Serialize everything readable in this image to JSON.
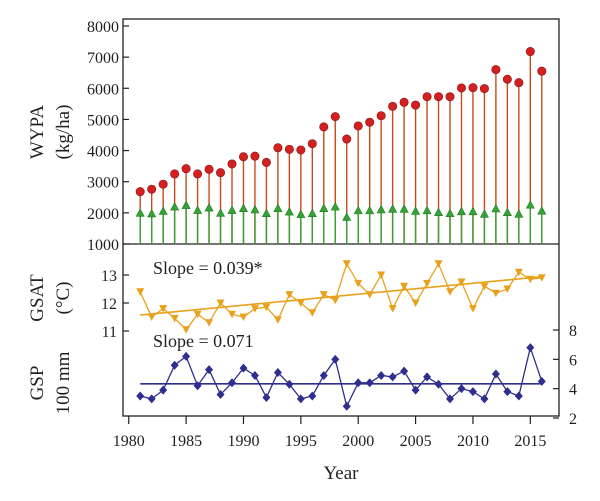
{
  "chart_data": [
    {
      "type": "lollipop",
      "panel": "top",
      "ylabel_line1": "WYPA",
      "ylabel_line2": "(kg/ha)",
      "ylim": [
        1000,
        8000
      ],
      "yticks": [
        1000,
        2000,
        3000,
        4000,
        5000,
        6000,
        7000,
        8000
      ],
      "x": [
        1981,
        1982,
        1983,
        1984,
        1985,
        1986,
        1987,
        1988,
        1989,
        1990,
        1991,
        1992,
        1993,
        1994,
        1995,
        1996,
        1997,
        1998,
        1999,
        2000,
        2001,
        2002,
        2003,
        2004,
        2005,
        2006,
        2007,
        2008,
        2009,
        2010,
        2011,
        2012,
        2013,
        2014,
        2015,
        2016
      ],
      "series": [
        {
          "values": [
            2680,
            2760,
            2920,
            3250,
            3420,
            3250,
            3400,
            3290,
            3570,
            3800,
            3820,
            3620,
            4090,
            4040,
            4020,
            4220,
            4760,
            5090,
            4370,
            4790,
            4910,
            5120,
            5420,
            5550,
            5460,
            5730,
            5730,
            5730,
            6010,
            6020,
            5990,
            6600,
            6290,
            6180,
            7180,
            6550
          ],
          "color": "#d32020",
          "stem_color": "#c84a1a"
        },
        {
          "values": [
            2000,
            1980,
            2060,
            2200,
            2250,
            2090,
            2170,
            2000,
            2090,
            2150,
            2110,
            1990,
            2150,
            2040,
            1960,
            1990,
            2150,
            2200,
            1870,
            2080,
            2080,
            2110,
            2130,
            2130,
            2060,
            2080,
            2020,
            1990,
            2050,
            2050,
            1970,
            2140,
            2020,
            1970,
            2260,
            2070
          ],
          "color": "#36a336",
          "stem_color": "#36a336"
        }
      ]
    },
    {
      "type": "line",
      "panel": "middle",
      "ylabel_line1": "GSAT",
      "ylabel_line2": "(°C)",
      "ylim": [
        10.5,
        14.0
      ],
      "yticks": [
        11,
        12,
        13
      ],
      "annotation": "Slope = 0.039*",
      "x": [
        1981,
        1982,
        1983,
        1984,
        1985,
        1986,
        1987,
        1988,
        1989,
        1990,
        1991,
        1992,
        1993,
        1994,
        1995,
        1996,
        1997,
        1998,
        1999,
        2000,
        2001,
        2002,
        2003,
        2004,
        2005,
        2006,
        2007,
        2008,
        2009,
        2010,
        2011,
        2012,
        2013,
        2014,
        2015,
        2016
      ],
      "values": [
        12.4,
        11.5,
        11.8,
        11.45,
        11.05,
        11.6,
        11.3,
        12.0,
        11.6,
        11.5,
        11.8,
        11.85,
        11.4,
        12.3,
        12.0,
        11.65,
        12.3,
        12.1,
        13.4,
        12.7,
        12.3,
        13.0,
        11.8,
        12.6,
        12.0,
        12.7,
        13.4,
        12.4,
        12.75,
        11.8,
        12.6,
        12.35,
        12.5,
        13.1,
        12.85,
        12.9
      ],
      "trend": [
        11.57,
        12.94
      ],
      "color": "#e8a11c"
    },
    {
      "type": "line",
      "panel": "bottom",
      "ylabel_line1": "GSP",
      "ylabel_line2": "100 mm",
      "ylim": [
        2,
        8
      ],
      "yticks": [
        2,
        4,
        6,
        8
      ],
      "annotation": "Slope = 0.071",
      "x": [
        1981,
        1982,
        1983,
        1984,
        1985,
        1986,
        1987,
        1988,
        1989,
        1990,
        1991,
        1992,
        1993,
        1994,
        1995,
        1996,
        1997,
        1998,
        1999,
        2000,
        2001,
        2002,
        2003,
        2004,
        2005,
        2006,
        2007,
        2008,
        2009,
        2010,
        2011,
        2012,
        2013,
        2014,
        2015,
        2016
      ],
      "values": [
        3.5,
        3.3,
        3.9,
        5.6,
        6.2,
        4.2,
        5.3,
        3.6,
        4.4,
        5.4,
        4.9,
        3.4,
        5.1,
        4.3,
        3.3,
        3.5,
        4.9,
        6.0,
        2.8,
        4.4,
        4.4,
        4.9,
        4.8,
        5.2,
        3.9,
        4.8,
        4.3,
        3.3,
        4.0,
        3.8,
        3.3,
        5.0,
        3.8,
        3.5,
        6.8,
        4.5
      ],
      "trend": [
        4.33,
        4.33
      ],
      "color": "#2e2e8f"
    }
  ],
  "xaxis": {
    "label": "Year",
    "xlim": [
      1979.5,
      2017.5
    ],
    "ticks": [
      1980,
      1985,
      1990,
      1995,
      2000,
      2005,
      2010,
      2015
    ]
  }
}
